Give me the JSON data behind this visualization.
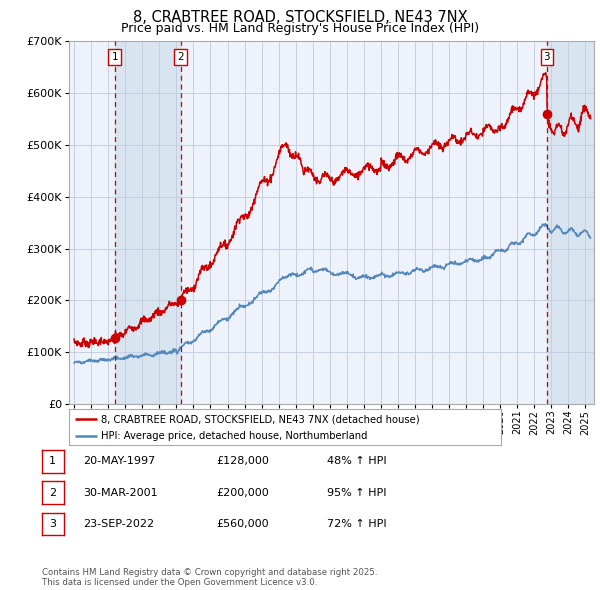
{
  "title": "8, CRABTREE ROAD, STOCKSFIELD, NE43 7NX",
  "subtitle": "Price paid vs. HM Land Registry's House Price Index (HPI)",
  "title_fontsize": 10.5,
  "subtitle_fontsize": 9,
  "ylim": [
    0,
    700000
  ],
  "yticks": [
    0,
    100000,
    200000,
    300000,
    400000,
    500000,
    600000,
    700000
  ],
  "bg_color": "#ffffff",
  "plot_bg_color": "#eef2fa",
  "shade_color": "#d8e4f0",
  "grid_color": "#c5cfe0",
  "red_line_color": "#cc0000",
  "blue_line_color": "#5588bb",
  "marker_color": "#cc0000",
  "dashed_color": "#cc0000",
  "sale1": {
    "date_num": 1997.38,
    "price": 128000,
    "label": "1",
    "date_str": "20-MAY-1997",
    "price_str": "£128,000",
    "pct": "48% ↑ HPI"
  },
  "sale2": {
    "date_num": 2001.25,
    "price": 200000,
    "label": "2",
    "date_str": "30-MAR-2001",
    "price_str": "£200,000",
    "pct": "95% ↑ HPI"
  },
  "sale3": {
    "date_num": 2022.73,
    "price": 560000,
    "label": "3",
    "date_str": "23-SEP-2022",
    "price_str": "£560,000",
    "pct": "72% ↑ HPI"
  },
  "footer": "Contains HM Land Registry data © Crown copyright and database right 2025.\nThis data is licensed under the Open Government Licence v3.0.",
  "legend_line1": "8, CRABTREE ROAD, STOCKSFIELD, NE43 7NX (detached house)",
  "legend_line2": "HPI: Average price, detached house, Northumberland",
  "xmin": 1994.7,
  "xmax": 2025.5
}
